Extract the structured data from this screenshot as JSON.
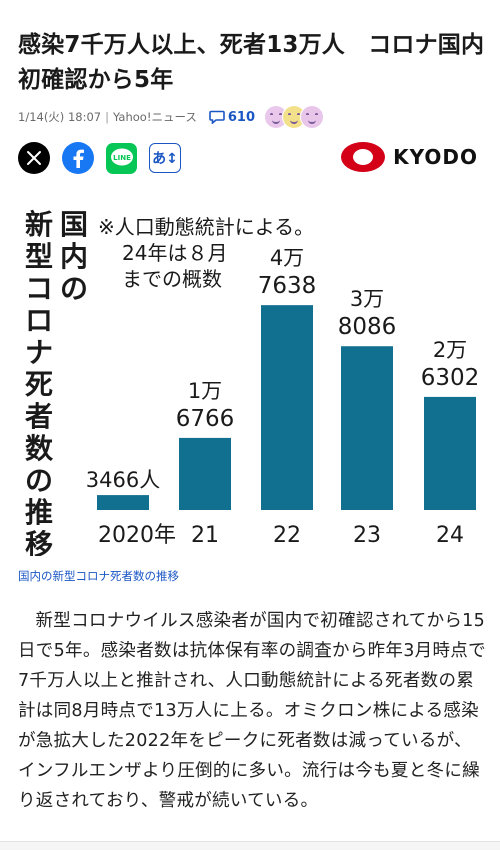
{
  "article": {
    "headline": "感染7千万人以上、死者13万人　コロナ国内初確認から5年",
    "date": "1/14(火) 18:07",
    "source": "Yahoo!ニュース",
    "comment_count": "610",
    "image_caption": "国内の新型コロナ死者数の推移",
    "body": "新型コロナウイルス感染者が国内で初確認されてから15日で5年。感染者数は抗体保有率の調査から昨年3月時点で7千万人以上と推計され、人口動態統計による死者数の累計は同8月時点で13万人に上る。オミクロン株による感染が急拡大した2022年をピークに死者数は減っているが、インフルエンザより圧倒的に多い。流行は今も夏と冬に繰り返されており、警戒が続いている。"
  },
  "share": {
    "font_button": "あ↕",
    "line_label": "LINE"
  },
  "publisher": {
    "logo_text": "KYODO"
  },
  "reactions": {
    "colors": [
      "#e9c8ec",
      "#f3e08a",
      "#e7c6ea"
    ]
  },
  "colors": {
    "accent": "#1a56c4",
    "bar": "#116f8f",
    "kyodo_red": "#d40018"
  },
  "chart_data": {
    "type": "bar",
    "title": "国内の新型コロナ死者数の推移",
    "note": "※人口動態統計による。",
    "note2": "24年は８月",
    "note3": "までの概数",
    "categories": [
      "2020年",
      "21",
      "22",
      "23",
      "24"
    ],
    "values": [
      3466,
      16766,
      47638,
      38086,
      26302
    ],
    "value_labels": [
      {
        "top": "",
        "bottom": "3466人"
      },
      {
        "top": "1万",
        "bottom": "6766"
      },
      {
        "top": "4万",
        "bottom": "7638"
      },
      {
        "top": "3万",
        "bottom": "8086"
      },
      {
        "top": "2万",
        "bottom": "6302"
      }
    ],
    "ylim": [
      0,
      50000
    ],
    "grid": false
  }
}
